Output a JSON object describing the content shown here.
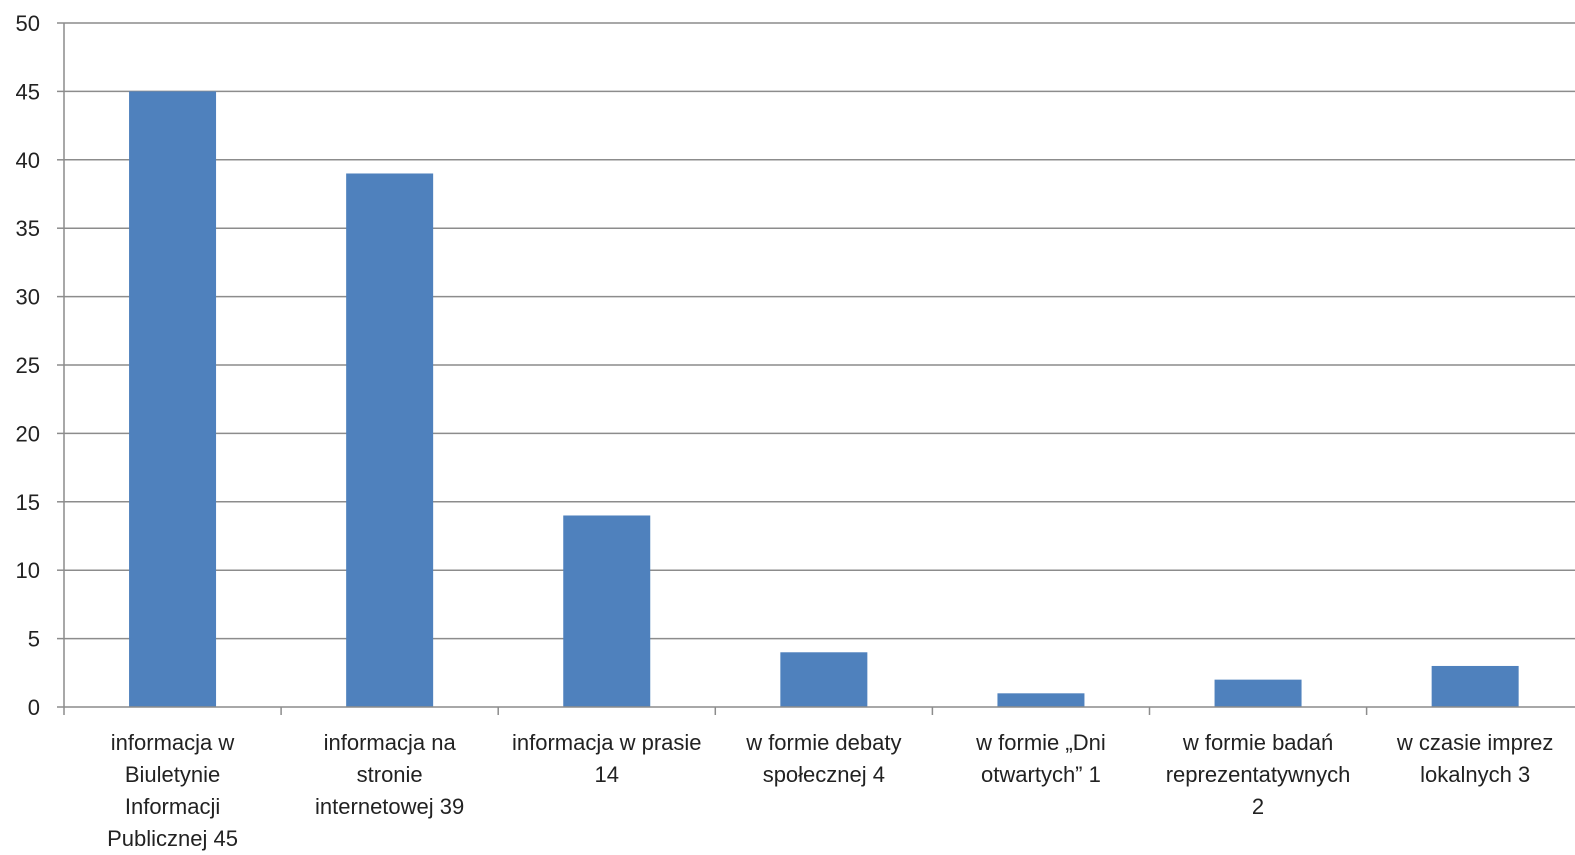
{
  "chart_data": {
    "type": "bar",
    "title": "",
    "xlabel": "",
    "ylabel": "",
    "ylim": [
      0,
      50
    ],
    "yticks": [
      0,
      5,
      10,
      15,
      20,
      25,
      30,
      35,
      40,
      45,
      50
    ],
    "grid": true,
    "legend": "none",
    "bar_color": "#4F81BD",
    "gridline_color": "#8c8c8c",
    "categories": [
      [
        "informacja w",
        "Biuletynie",
        "Informacji",
        "Publicznej 45"
      ],
      [
        "informacja na",
        "stronie",
        "internetowej 39"
      ],
      [
        "informacja w prasie",
        "14"
      ],
      [
        "w formie debaty",
        "społecznej 4"
      ],
      [
        "w formie „Dni",
        "otwartych” 1"
      ],
      [
        "w formie badań",
        "reprezentatywnych",
        "2"
      ],
      [
        "w czasie imprez",
        "lokalnych 3"
      ]
    ],
    "values": [
      45,
      39,
      14,
      4,
      1,
      2,
      3
    ]
  }
}
